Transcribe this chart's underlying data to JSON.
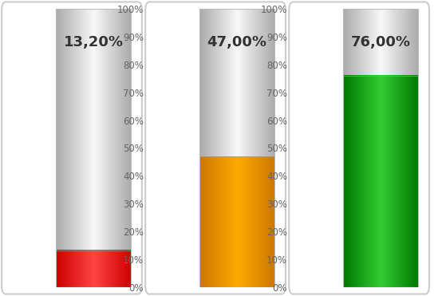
{
  "charts": [
    {
      "value": 0.132,
      "label": "13,20%",
      "color_dark": "#CC0000",
      "color_mid": "#FF4444",
      "color_light": "#FF9999"
    },
    {
      "value": 0.47,
      "label": "47,00%",
      "color_dark": "#CC7700",
      "color_mid": "#FFAA00",
      "color_light": "#FFE080"
    },
    {
      "value": 0.76,
      "label": "76,00%",
      "color_dark": "#007700",
      "color_mid": "#33CC33",
      "color_light": "#99EE99"
    }
  ],
  "bg_color": "#FFFFFF",
  "tick_labels": [
    "0%",
    "10%",
    "20%",
    "30%",
    "40%",
    "50%",
    "60%",
    "70%",
    "80%",
    "90%",
    "100%"
  ],
  "tick_values": [
    0,
    0.1,
    0.2,
    0.3,
    0.4,
    0.5,
    0.6,
    0.7,
    0.8,
    0.9,
    1.0
  ],
  "label_fontsize": 13,
  "tick_fontsize": 8.5,
  "value_label_color": "#333333",
  "gray_dark": "#AAAAAA",
  "gray_mid": "#E8E8E8",
  "gray_light": "#F8F8F8"
}
